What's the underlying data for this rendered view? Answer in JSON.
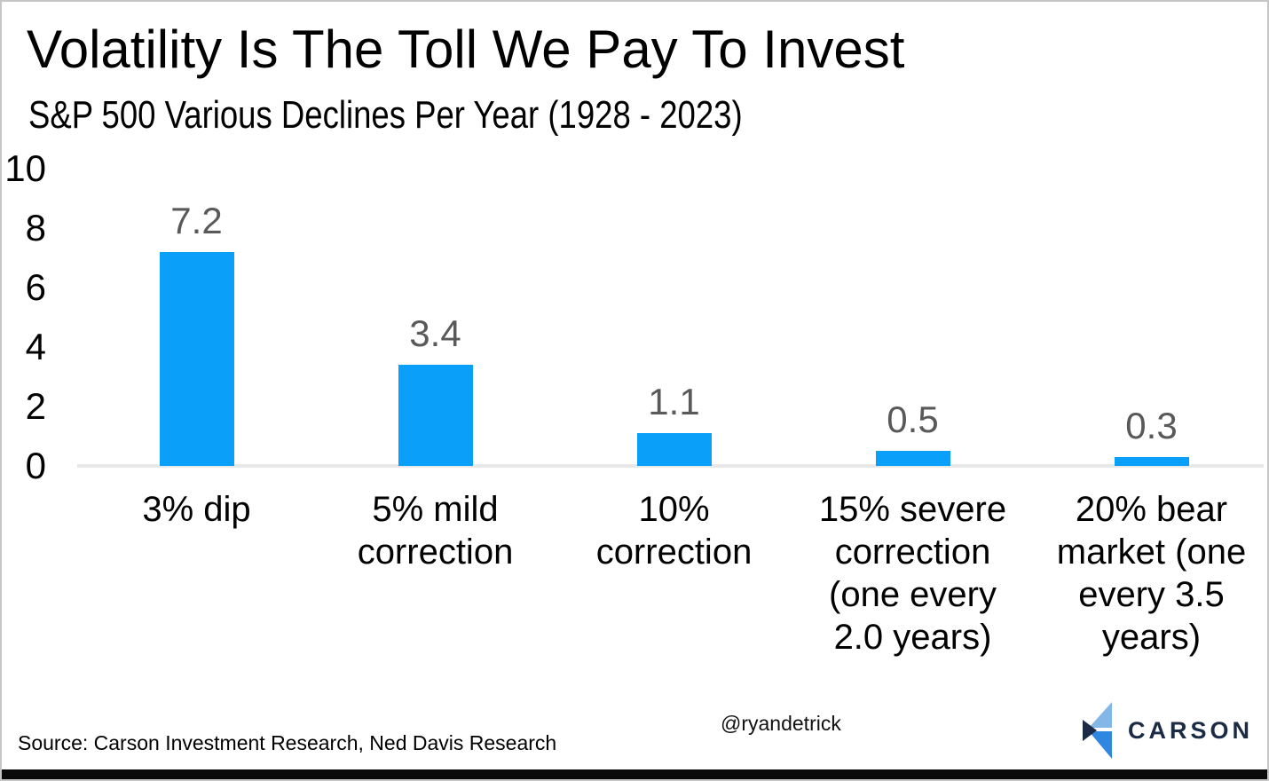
{
  "chart_data": {
    "type": "bar",
    "title": "Volatility Is The Toll We Pay To Invest",
    "subtitle": "S&P 500 Various Declines Per Year (1928 - 2023)",
    "categories": [
      "3% dip",
      "5% mild correction",
      "10% correction",
      "15% severe correction (one every 2.0 years)",
      "20% bear market (one every 3.5 years)"
    ],
    "category_lines": [
      [
        "3% dip"
      ],
      [
        "5% mild",
        "correction"
      ],
      [
        "10%",
        "correction"
      ],
      [
        "15% severe",
        "correction",
        "(one every",
        "2.0 years)"
      ],
      [
        "20% bear",
        "market (one",
        "every 3.5",
        "years)"
      ]
    ],
    "values": [
      7.2,
      3.4,
      1.1,
      0.5,
      0.3
    ],
    "value_labels": [
      "7.2",
      "3.4",
      "1.1",
      "0.5",
      "0.3"
    ],
    "xlabel": "",
    "ylabel": "",
    "ylim": [
      0,
      10
    ],
    "yticks": [
      0,
      2,
      4,
      6,
      8,
      10
    ],
    "grid": false,
    "legend": "none",
    "bar_color": "#0a9ff9",
    "value_label_color": "#595959",
    "axis_line_color": "#e8e8e8"
  },
  "footer": {
    "source": "Source: Carson Investment Research, Ned Davis Research",
    "handle": "@ryandetrick",
    "logo_text": "CARSON"
  },
  "logo_colors": {
    "light_blue": "#82b7e8",
    "mid_blue": "#2f87e0",
    "navy": "#1b2a45"
  }
}
